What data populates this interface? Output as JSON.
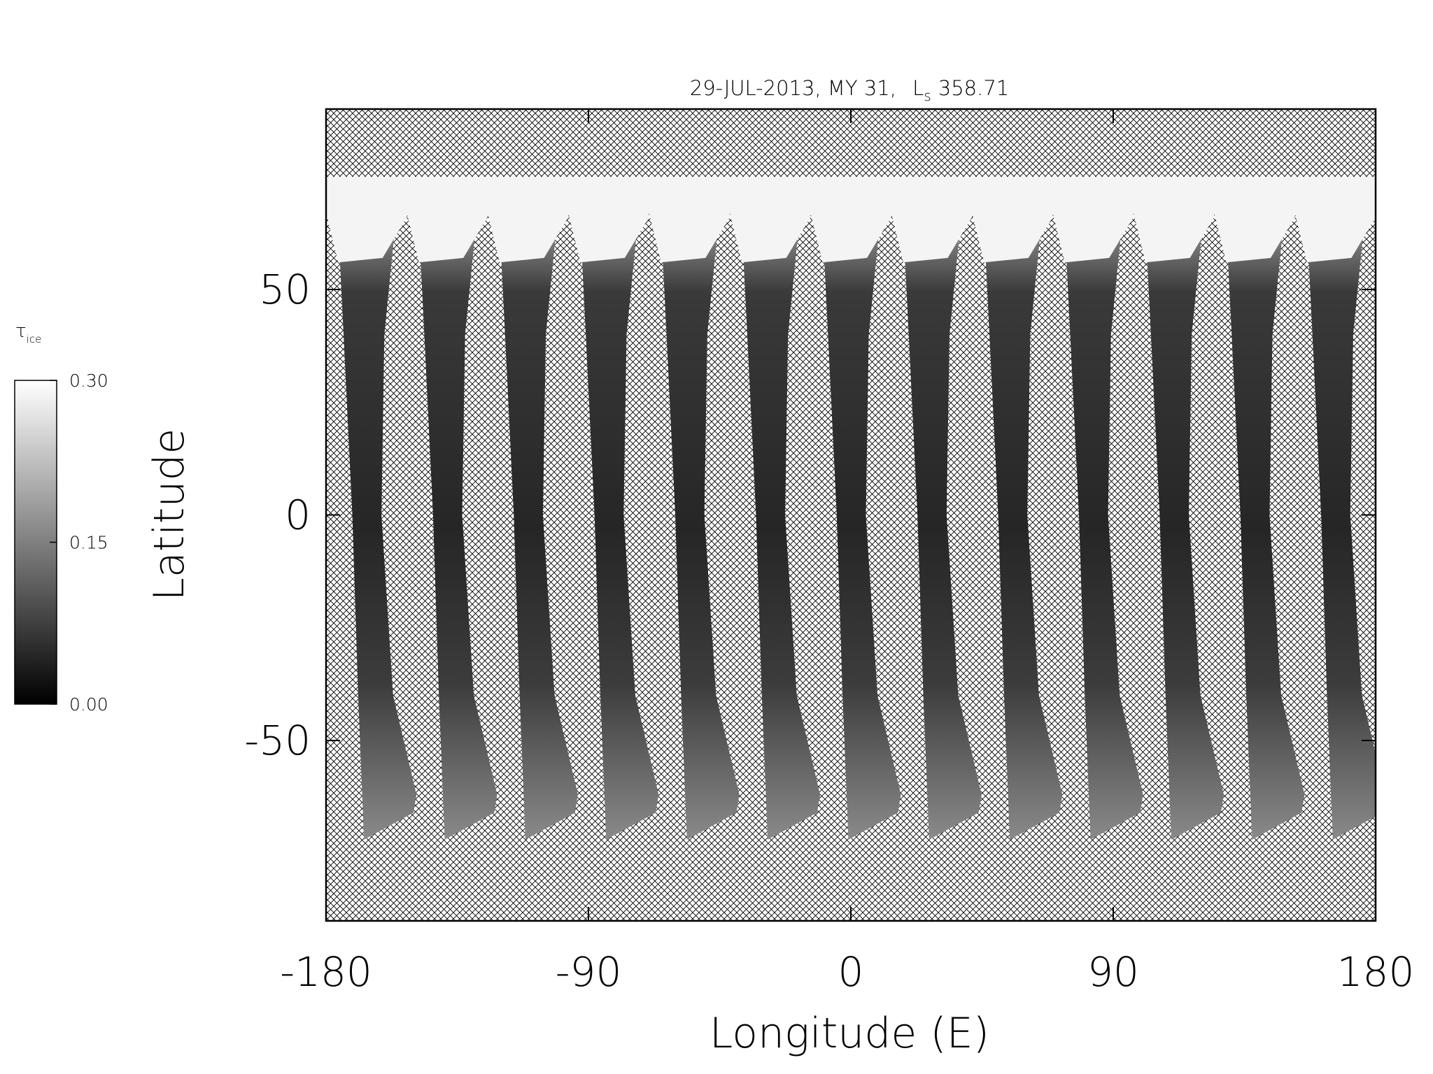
{
  "chart_data": {
    "type": "map",
    "title_parts": [
      "29-JUL-2013, MY 31,",
      "L",
      "s",
      "358.71"
    ],
    "x_label": "Longitude (E)",
    "y_label": "Latitude",
    "xlim": [
      -180,
      180
    ],
    "xticks": [
      -180,
      -90,
      0,
      90,
      180
    ],
    "ylim": [
      -90,
      90
    ],
    "yticks": [
      -50,
      0,
      50
    ],
    "colorbar": {
      "label": "τ",
      "label_sub": "ice",
      "range": [
        0,
        0.3
      ],
      "ticks": [
        {
          "value": 0,
          "label": "0.00"
        },
        {
          "value": 0.15,
          "label": "0.15"
        },
        {
          "value": 0.3,
          "label": "0.30"
        }
      ],
      "colors": [
        "#000000",
        "#ffffff"
      ]
    }
  }
}
